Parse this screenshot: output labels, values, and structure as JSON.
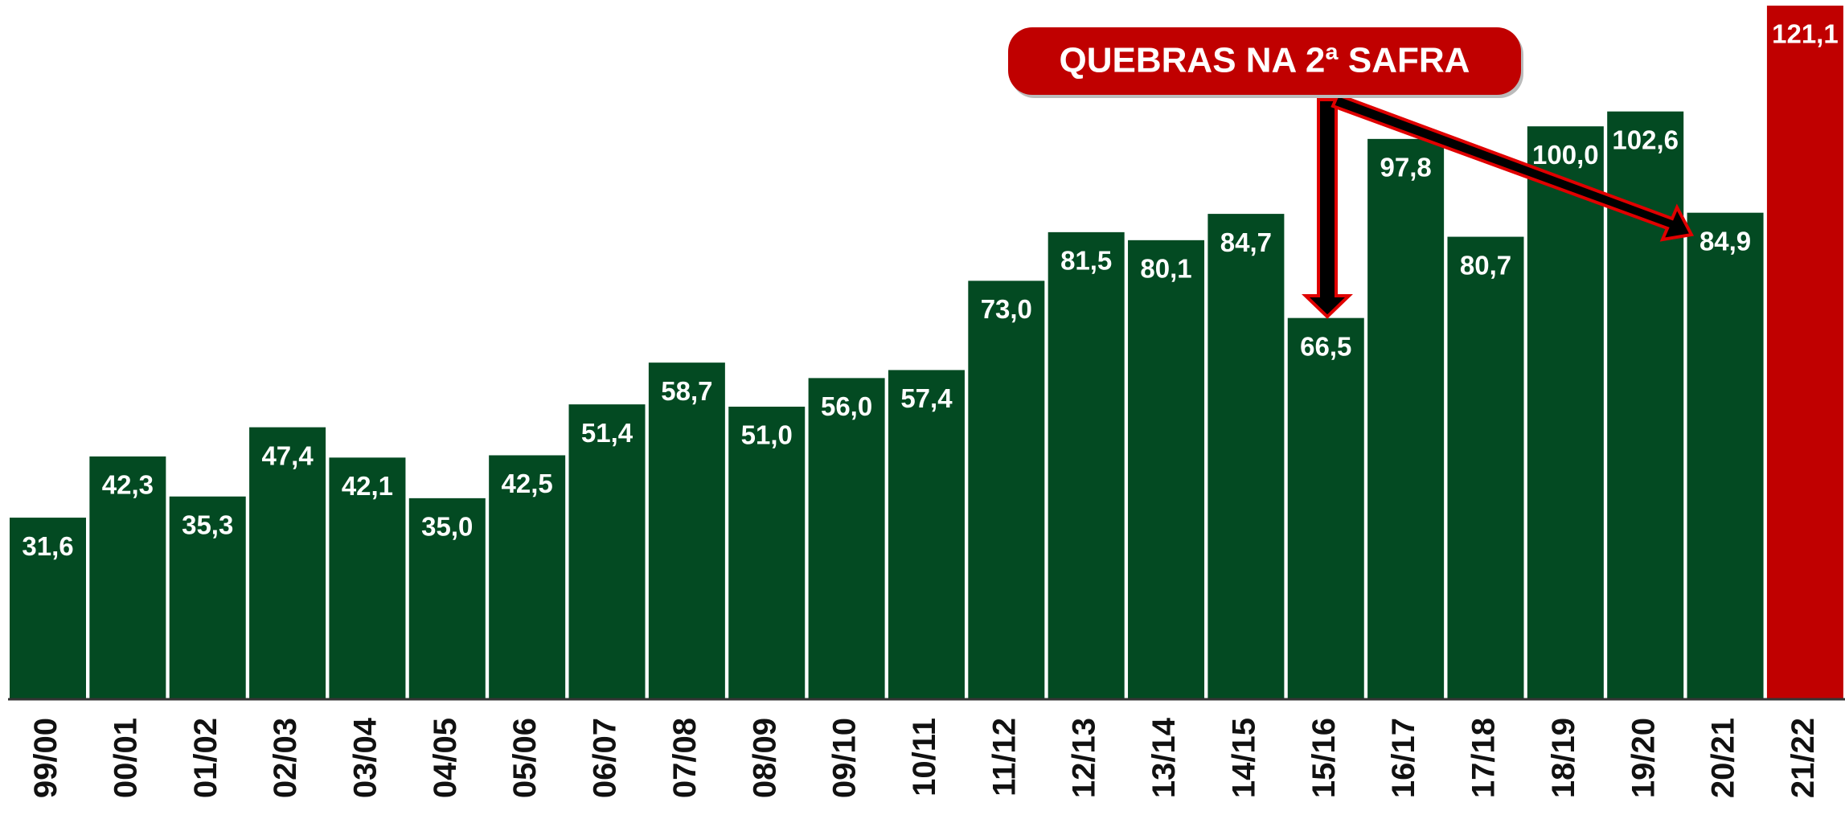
{
  "chart_data": {
    "type": "bar",
    "categories": [
      "99/00",
      "00/01",
      "01/02",
      "02/03",
      "03/04",
      "04/05",
      "05/06",
      "06/07",
      "07/08",
      "08/09",
      "09/10",
      "10/11",
      "11/12",
      "12/13",
      "13/14",
      "14/15",
      "15/16",
      "16/17",
      "17/18",
      "18/19",
      "19/20",
      "20/21",
      "21/22"
    ],
    "values": [
      31.6,
      42.3,
      35.3,
      47.4,
      42.1,
      35.0,
      42.5,
      51.4,
      58.7,
      51.0,
      56.0,
      57.4,
      73.0,
      81.5,
      80.1,
      84.7,
      66.5,
      97.8,
      80.7,
      100.0,
      102.6,
      84.9,
      121.1
    ],
    "value_labels": [
      "31,6",
      "42,3",
      "35,3",
      "47,4",
      "42,1",
      "35,0",
      "42,5",
      "51,4",
      "58,7",
      "51,0",
      "56,0",
      "57,4",
      "73,0",
      "81,5",
      "80,1",
      "84,7",
      "66,5",
      "97,8",
      "80,7",
      "100,0",
      "102,6",
      "84,9",
      "121,1"
    ],
    "colors": [
      "#034a22",
      "#034a22",
      "#034a22",
      "#034a22",
      "#034a22",
      "#034a22",
      "#034a22",
      "#034a22",
      "#034a22",
      "#034a22",
      "#034a22",
      "#034a22",
      "#034a22",
      "#034a22",
      "#034a22",
      "#034a22",
      "#034a22",
      "#034a22",
      "#034a22",
      "#034a22",
      "#034a22",
      "#034a22",
      "#c00000"
    ],
    "annotation": "QUEBRAS NA 2ª SAFRA"
  }
}
